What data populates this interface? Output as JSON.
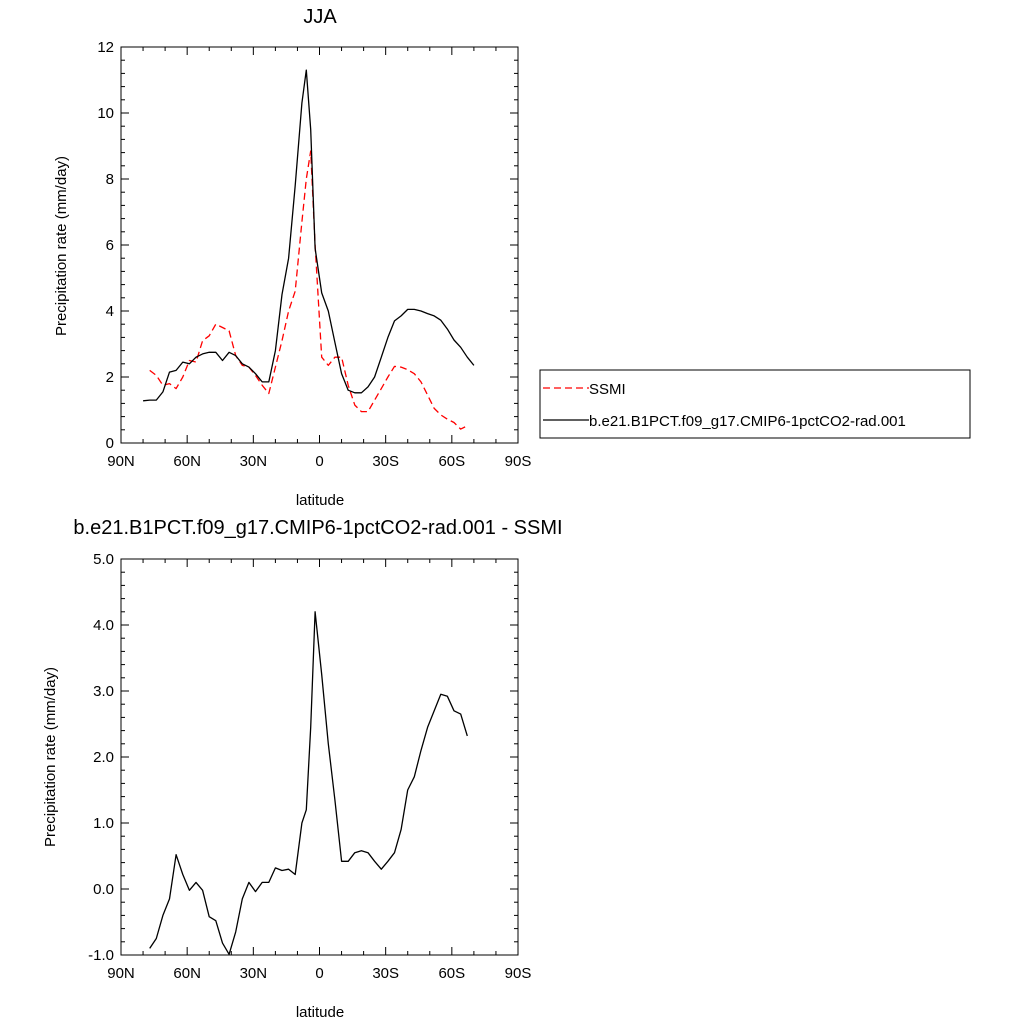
{
  "chart_data": [
    {
      "type": "line",
      "title": "JJA",
      "xlabel": "latitude",
      "ylabel": "Precipitation rate (mm/day)",
      "xlim": [
        90,
        -90
      ],
      "ylim": [
        0,
        12
      ],
      "xticks": [
        90,
        60,
        30,
        0,
        -30,
        -60,
        -90
      ],
      "xtick_labels": [
        "90N",
        "60N",
        "30N",
        "0",
        "30S",
        "60S",
        "90S"
      ],
      "yticks": [
        0,
        2,
        4,
        6,
        8,
        10,
        12
      ],
      "ytick_labels": [
        "0",
        "2",
        "4",
        "6",
        "8",
        "10",
        "12"
      ],
      "grid": false,
      "legend_position": "right",
      "series": [
        {
          "name": "SSMI",
          "color": "#ff0000",
          "dash": "dashed",
          "x": [
            77,
            74,
            71,
            68,
            65,
            62,
            59,
            56,
            53,
            50,
            47,
            44,
            41,
            38,
            35,
            32,
            29,
            26,
            23,
            20,
            17,
            14,
            11,
            8,
            6,
            4,
            2,
            -1,
            -4,
            -7,
            -10,
            -13,
            -16,
            -19,
            -22,
            -25,
            -28,
            -31,
            -34,
            -37,
            -40,
            -43,
            -46,
            -49,
            -52,
            -55,
            -58,
            -61,
            -64,
            -67
          ],
          "y": [
            2.2,
            2.05,
            1.75,
            1.8,
            1.65,
            2.0,
            2.5,
            2.45,
            3.1,
            3.25,
            3.6,
            3.5,
            3.4,
            2.65,
            2.35,
            2.3,
            2.05,
            1.75,
            1.5,
            2.3,
            3.1,
            4.0,
            4.6,
            6.7,
            8.0,
            8.85,
            6.0,
            2.6,
            2.35,
            2.6,
            2.6,
            1.75,
            1.15,
            0.95,
            0.95,
            1.3,
            1.65,
            2.0,
            2.32,
            2.3,
            2.22,
            2.1,
            1.85,
            1.45,
            1.05,
            0.85,
            0.72,
            0.62,
            0.42,
            0.52
          ]
        },
        {
          "name": "b.e21.B1PCT.f09_g17.CMIP6-1pctCO2-rad.001",
          "color": "#000000",
          "dash": "solid",
          "x": [
            80,
            77,
            74,
            71,
            68,
            65,
            62,
            59,
            56,
            53,
            50,
            47,
            44,
            41,
            38,
            35,
            32,
            29,
            26,
            23,
            20,
            17,
            14,
            11,
            8,
            6,
            4,
            2,
            -1,
            -4,
            -7,
            -10,
            -13,
            -16,
            -19,
            -22,
            -25,
            -28,
            -31,
            -34,
            -37,
            -40,
            -43,
            -46,
            -49,
            -52,
            -55,
            -58,
            -61,
            -64,
            -67,
            -70
          ],
          "y": [
            1.28,
            1.3,
            1.3,
            1.55,
            2.15,
            2.2,
            2.45,
            2.4,
            2.6,
            2.7,
            2.75,
            2.75,
            2.5,
            2.75,
            2.65,
            2.4,
            2.3,
            2.1,
            1.85,
            1.85,
            2.8,
            4.5,
            5.6,
            7.8,
            10.3,
            11.3,
            9.5,
            5.9,
            4.55,
            4.0,
            3.05,
            2.1,
            1.6,
            1.52,
            1.52,
            1.7,
            2.0,
            2.6,
            3.2,
            3.7,
            3.85,
            4.05,
            4.05,
            4.0,
            3.92,
            3.85,
            3.72,
            3.45,
            3.12,
            2.9,
            2.6,
            2.35
          ]
        }
      ]
    },
    {
      "type": "line",
      "title": "b.e21.B1PCT.f09_g17.CMIP6-1pctCO2-rad.001 - SSMI",
      "xlabel": "latitude",
      "ylabel": "Precipitation rate (mm/day)",
      "xlim": [
        90,
        -90
      ],
      "ylim": [
        -1.0,
        5.0
      ],
      "xticks": [
        90,
        60,
        30,
        0,
        -30,
        -60,
        -90
      ],
      "xtick_labels": [
        "90N",
        "60N",
        "30N",
        "0",
        "30S",
        "60S",
        "90S"
      ],
      "yticks": [
        -1,
        0,
        1,
        2,
        3,
        4,
        5
      ],
      "ytick_labels": [
        "-1.0",
        "0.0",
        "1.0",
        "2.0",
        "3.0",
        "4.0",
        "5.0"
      ],
      "grid": false,
      "series": [
        {
          "color": "#000000",
          "dash": "solid",
          "x": [
            77,
            74,
            71,
            68,
            65,
            62,
            59,
            56,
            53,
            50,
            47,
            44,
            41,
            38,
            35,
            32,
            29,
            26,
            23,
            20,
            17,
            14,
            11,
            8,
            6,
            4,
            2,
            -1,
            -4,
            -7,
            -10,
            -13,
            -16,
            -19,
            -22,
            -25,
            -28,
            -31,
            -34,
            -37,
            -40,
            -43,
            -46,
            -49,
            -52,
            -55,
            -58,
            -61,
            -64,
            -67
          ],
          "y": [
            -0.9,
            -0.75,
            -0.4,
            -0.15,
            0.52,
            0.22,
            -0.02,
            0.1,
            -0.02,
            -0.42,
            -0.48,
            -0.82,
            -0.99,
            -0.65,
            -0.15,
            0.1,
            -0.04,
            0.1,
            0.1,
            0.32,
            0.28,
            0.3,
            0.22,
            1.0,
            1.2,
            2.45,
            4.2,
            3.25,
            2.2,
            1.35,
            0.42,
            0.42,
            0.55,
            0.58,
            0.55,
            0.42,
            0.3,
            0.42,
            0.55,
            0.9,
            1.5,
            1.7,
            2.1,
            2.45,
            2.7,
            2.95,
            2.92,
            2.7,
            2.65,
            2.32
          ]
        }
      ]
    }
  ]
}
